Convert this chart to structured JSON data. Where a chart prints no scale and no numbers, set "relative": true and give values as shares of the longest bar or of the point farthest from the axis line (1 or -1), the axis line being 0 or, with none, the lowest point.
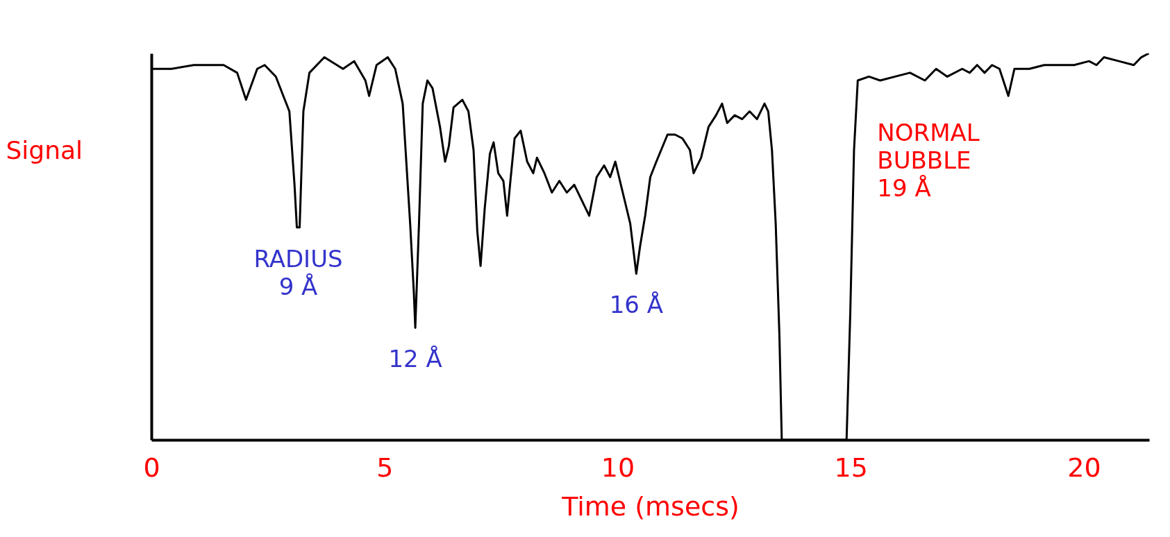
{
  "chart_data": {
    "type": "line",
    "relative": true,
    "xlabel": "Time  (msecs)",
    "ylabel": "Signal",
    "xlim": [
      0,
      21.4
    ],
    "xticks": [
      0,
      5,
      10,
      15,
      20
    ],
    "grid": false,
    "marker": "none",
    "line_style": "solid",
    "annotations": [
      {
        "text": "RADIUS\n9 Å",
        "x": 3.15,
        "y": 0.55
      },
      {
        "text": "12 Å",
        "x": 5.66,
        "y": 0.29
      },
      {
        "text": "16 Å",
        "x": 10.4,
        "y": 0.43
      },
      {
        "text": "NORMAL\nBUBBLE\n19 Å",
        "x": 15.15,
        "y": 0.93
      }
    ],
    "series": [
      {
        "color": "#000000",
        "x": [
          0,
          0.43,
          0.91,
          1.55,
          1.84,
          2.03,
          2.27,
          2.43,
          2.67,
          2.83,
          2.96,
          3.07,
          3.12,
          3.18,
          3.26,
          3.39,
          3.71,
          4.11,
          4.35,
          4.59,
          4.67,
          4.83,
          5.07,
          5.23,
          5.39,
          5.55,
          5.63,
          5.66,
          5.74,
          5.82,
          5.92,
          6.03,
          6.19,
          6.3,
          6.38,
          6.48,
          6.67,
          6.8,
          6.91,
          6.99,
          7.06,
          7.15,
          7.26,
          7.34,
          7.44,
          7.55,
          7.63,
          7.7,
          7.79,
          7.92,
          8.06,
          8.19,
          8.27,
          8.43,
          8.59,
          8.75,
          8.91,
          9.07,
          9.23,
          9.39,
          9.55,
          9.71,
          9.84,
          9.95,
          10.11,
          10.27,
          10.4,
          10.48,
          10.59,
          10.7,
          10.83,
          11.07,
          11.23,
          11.39,
          11.55,
          11.63,
          11.79,
          11.95,
          12.11,
          12.24,
          12.35,
          12.51,
          12.67,
          12.83,
          12.99,
          13.15,
          13.23,
          13.31,
          13.39,
          13.47,
          13.52,
          14.91,
          14.99,
          15.07,
          15.15,
          15.39,
          15.63,
          15.95,
          16.27,
          16.59,
          16.83,
          17.07,
          17.39,
          17.55,
          17.71,
          17.87,
          18.03,
          18.19,
          18.38,
          18.51,
          18.83,
          19.15,
          19.47,
          19.79,
          20.11,
          20.27,
          20.43,
          20.75,
          21.07,
          21.23,
          21.39
        ],
        "values": [
          0.96,
          0.96,
          0.97,
          0.97,
          0.95,
          0.88,
          0.96,
          0.97,
          0.94,
          0.89,
          0.85,
          0.66,
          0.55,
          0.55,
          0.85,
          0.95,
          0.99,
          0.96,
          0.98,
          0.93,
          0.89,
          0.97,
          0.99,
          0.96,
          0.87,
          0.56,
          0.38,
          0.29,
          0.56,
          0.87,
          0.93,
          0.91,
          0.81,
          0.72,
          0.76,
          0.86,
          0.88,
          0.85,
          0.75,
          0.54,
          0.45,
          0.6,
          0.74,
          0.77,
          0.69,
          0.67,
          0.58,
          0.67,
          0.78,
          0.8,
          0.72,
          0.69,
          0.73,
          0.69,
          0.64,
          0.67,
          0.64,
          0.66,
          0.62,
          0.58,
          0.68,
          0.71,
          0.68,
          0.72,
          0.64,
          0.56,
          0.43,
          0.5,
          0.58,
          0.68,
          0.72,
          0.79,
          0.79,
          0.78,
          0.75,
          0.69,
          0.73,
          0.81,
          0.84,
          0.87,
          0.82,
          0.84,
          0.83,
          0.85,
          0.83,
          0.87,
          0.85,
          0.75,
          0.56,
          0.27,
          0,
          0,
          0.33,
          0.75,
          0.93,
          0.94,
          0.93,
          0.94,
          0.95,
          0.93,
          0.96,
          0.94,
          0.96,
          0.95,
          0.97,
          0.95,
          0.97,
          0.96,
          0.89,
          0.96,
          0.96,
          0.97,
          0.97,
          0.97,
          0.98,
          0.97,
          0.99,
          0.98,
          0.97,
          0.99,
          1.0
        ]
      }
    ]
  }
}
